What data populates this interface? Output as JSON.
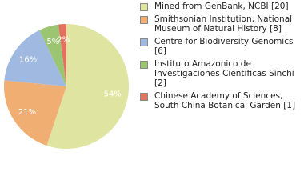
{
  "chart_data": {
    "type": "pie",
    "categories": [
      "Mined from GenBank, NCBI [20]",
      "Smithsonian Institution, National Museum of Natural History [8]",
      "Centre for Biodiversity Genomics [6]",
      "Instituto Amazonico de Investigaciones Cientificas Sinchi [2]",
      "Chinese Academy of Sciences, South China Botanical Garden [1]"
    ],
    "values": [
      54,
      21,
      16,
      5,
      2
    ],
    "value_labels": [
      "54%",
      "21%",
      "16%",
      "5%",
      "2%"
    ],
    "colors": [
      "#dfe4a0",
      "#f0ae73",
      "#a0b9e1",
      "#9cc572",
      "#e2715f"
    ],
    "legend": "right"
  }
}
